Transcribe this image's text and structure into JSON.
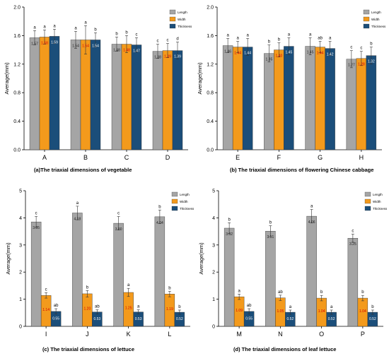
{
  "legend": [
    "Length",
    "Width",
    "Thickness"
  ],
  "colors": {
    "Length": "#a5a5a5",
    "Width": "#f39a1c",
    "Thickness": "#1b4e7a"
  },
  "chart_data": [
    {
      "type": "bar",
      "caption": "(a)The triaxial dimensions of vegetable",
      "ylabel": "Average(mm)",
      "ylim": [
        0,
        2.0
      ],
      "yticks": [
        0.0,
        0.4,
        0.8,
        1.2,
        1.6,
        2.0
      ],
      "categories": [
        "A",
        "B",
        "C",
        "D"
      ],
      "series": [
        {
          "name": "Length",
          "values": [
            1.57,
            1.54,
            1.48,
            1.38
          ],
          "errors": [
            0.1,
            0.12,
            0.1,
            0.1
          ],
          "letters": [
            "a",
            "a",
            "b",
            "c"
          ],
          "labels": [
            "1.57",
            "1.54",
            "1.48",
            "1.38"
          ]
        },
        {
          "name": "Width",
          "values": [
            1.58,
            1.54,
            1.48,
            1.39
          ],
          "errors": [
            0.1,
            0.2,
            0.12,
            0.1
          ],
          "letters": [
            "a",
            "a",
            "b",
            "c"
          ],
          "labels": [
            "1.58",
            "1.54",
            "1.48",
            "1.39"
          ]
        },
        {
          "name": "Thickness",
          "values": [
            1.59,
            1.54,
            1.47,
            1.39
          ],
          "errors": [
            0.1,
            0.1,
            0.1,
            0.12
          ],
          "letters": [
            "a",
            "b",
            "c",
            "d"
          ],
          "labels": [
            "1.59",
            "1.54",
            "1.47",
            "1.39"
          ]
        }
      ]
    },
    {
      "type": "bar",
      "caption": "(b) The triaxial dimensions of flowering Chinese cabbage",
      "ylabel": "Average(mm)",
      "ylim": [
        0,
        2.0
      ],
      "yticks": [
        0.0,
        0.4,
        0.8,
        1.2,
        1.6,
        2.0
      ],
      "categories": [
        "E",
        "F",
        "G",
        "H"
      ],
      "series": [
        {
          "name": "Length",
          "values": [
            1.46,
            1.35,
            1.45,
            1.27
          ],
          "errors": [
            0.1,
            0.12,
            0.12,
            0.12
          ],
          "letters": [
            "a",
            "b",
            "a",
            "c"
          ],
          "labels": [
            "1.46",
            "1.35",
            "1.45",
            "1.27"
          ]
        },
        {
          "name": "Width",
          "values": [
            1.44,
            1.4,
            1.44,
            1.28
          ],
          "errors": [
            0.08,
            0.1,
            0.08,
            0.1
          ],
          "letters": [
            "a",
            "b",
            "ab",
            "c"
          ],
          "labels": [
            "1.44",
            "1.40",
            "1.44",
            "1.28"
          ]
        },
        {
          "name": "Thickness",
          "values": [
            1.44,
            1.45,
            1.42,
            1.32
          ],
          "errors": [
            0.12,
            0.12,
            0.1,
            0.12
          ],
          "letters": [
            "a",
            "a",
            "a",
            "b"
          ],
          "labels": [
            "1.44",
            "1.45",
            "1.42",
            "1.32"
          ]
        }
      ]
    },
    {
      "type": "bar",
      "caption": "(c) The triaxial dimensions of lettuce",
      "ylabel": "Average(mm)",
      "ylim": [
        0,
        5
      ],
      "yticks": [
        0,
        1,
        2,
        3,
        4,
        5
      ],
      "categories": [
        "I",
        "J",
        "K",
        "L"
      ],
      "series": [
        {
          "name": "Length",
          "values": [
            3.85,
            4.18,
            3.8,
            4.04
          ],
          "errors": [
            0.2,
            0.25,
            0.25,
            0.25
          ],
          "letters": [
            "c",
            "a",
            "c",
            "b"
          ],
          "labels": [
            "3.85",
            "4.18",
            "3.80",
            "4.04"
          ]
        },
        {
          "name": "Width",
          "values": [
            1.14,
            1.2,
            1.25,
            1.19
          ],
          "errors": [
            0.1,
            0.12,
            0.15,
            0.1
          ],
          "letters": [
            "c",
            "b",
            "a",
            "b"
          ],
          "labels": [
            "1.14",
            "1.20",
            "1.25",
            "1.19"
          ]
        },
        {
          "name": "Thickness",
          "values": [
            0.55,
            0.53,
            0.53,
            0.52
          ],
          "errors": [
            0.1,
            0.08,
            0.08,
            0.08
          ],
          "letters": [
            "ab",
            "ab",
            "a",
            "b"
          ],
          "labels": [
            "0.55",
            "0.53",
            "0.53",
            "0.52"
          ]
        }
      ]
    },
    {
      "type": "bar",
      "caption": "(d) The triaxial dimensions of leaf lettuce",
      "ylabel": "Average(mm)",
      "ylim": [
        0,
        5
      ],
      "yticks": [
        0,
        1,
        2,
        3,
        4,
        5
      ],
      "categories": [
        "M",
        "N",
        "O",
        "P"
      ],
      "series": [
        {
          "name": "Length",
          "values": [
            3.62,
            3.51,
            4.06,
            3.25
          ],
          "errors": [
            0.2,
            0.2,
            0.25,
            0.15
          ],
          "letters": [
            "b",
            "b",
            "a",
            "c"
          ],
          "labels": [
            "3.62",
            "3.51",
            "4.06",
            "3.25"
          ]
        },
        {
          "name": "Width",
          "values": [
            1.09,
            1.05,
            1.04,
            1.04
          ],
          "errors": [
            0.1,
            0.1,
            0.1,
            0.1
          ],
          "letters": [
            "a",
            "ab",
            "b",
            "b"
          ],
          "labels": [
            "1.09",
            "1.05",
            "1.04",
            "1.04"
          ]
        },
        {
          "name": "Thickness",
          "values": [
            0.55,
            0.52,
            0.52,
            0.52
          ],
          "errors": [
            0.1,
            0.08,
            0.08,
            0.08
          ],
          "letters": [
            "ab",
            "a",
            "a",
            "b"
          ],
          "labels": [
            "0.55",
            "0.52",
            "0.52",
            "0.52"
          ]
        }
      ]
    }
  ]
}
